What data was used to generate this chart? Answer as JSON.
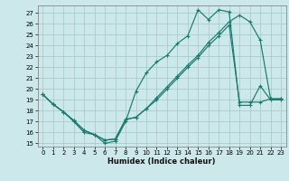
{
  "background_color": "#cce8ea",
  "grid_color": "#aacccc",
  "line_color": "#1a7a6e",
  "xlabel": "Humidex (Indice chaleur)",
  "ylabel_ticks": [
    15,
    16,
    17,
    18,
    19,
    20,
    21,
    22,
    23,
    24,
    25,
    26,
    27
  ],
  "xlabel_ticks": [
    0,
    1,
    2,
    3,
    4,
    5,
    6,
    7,
    8,
    9,
    10,
    11,
    12,
    13,
    14,
    15,
    16,
    17,
    18,
    19,
    20,
    21,
    22,
    23
  ],
  "ylim": [
    14.7,
    27.7
  ],
  "xlim": [
    -0.5,
    23.5
  ],
  "curve1_x": [
    0,
    1,
    2,
    3,
    4,
    5,
    6,
    7,
    8,
    9,
    10,
    11,
    12,
    13,
    14,
    15,
    16,
    17,
    18,
    19,
    20,
    21,
    22,
    23
  ],
  "curve1_y": [
    19.5,
    18.6,
    17.9,
    17.0,
    16.0,
    15.8,
    15.0,
    15.2,
    17.0,
    19.8,
    21.5,
    22.5,
    23.1,
    24.2,
    24.9,
    27.3,
    26.4,
    27.3,
    27.1,
    18.5,
    18.5,
    20.3,
    19.0,
    19.0
  ],
  "curve2_x": [
    0,
    1,
    2,
    3,
    4,
    5,
    6,
    7,
    8,
    9,
    10,
    11,
    12,
    13,
    14,
    15,
    16,
    17,
    18,
    19,
    20,
    21,
    22,
    23
  ],
  "curve2_y": [
    19.5,
    18.6,
    17.9,
    17.1,
    16.2,
    15.8,
    15.3,
    15.4,
    17.2,
    17.4,
    18.2,
    19.2,
    20.2,
    21.2,
    22.2,
    23.1,
    24.3,
    25.2,
    26.2,
    26.8,
    26.2,
    24.5,
    19.1,
    19.1
  ],
  "curve3_x": [
    0,
    1,
    2,
    3,
    4,
    5,
    6,
    7,
    8,
    9,
    10,
    11,
    12,
    13,
    14,
    15,
    16,
    17,
    18,
    19,
    20,
    21,
    22,
    23
  ],
  "curve3_y": [
    19.5,
    18.6,
    17.9,
    17.1,
    16.2,
    15.8,
    15.3,
    15.4,
    17.2,
    17.4,
    18.2,
    19.0,
    20.0,
    21.0,
    22.0,
    22.9,
    24.0,
    24.9,
    25.9,
    18.8,
    18.8,
    18.8,
    19.1,
    19.1
  ]
}
